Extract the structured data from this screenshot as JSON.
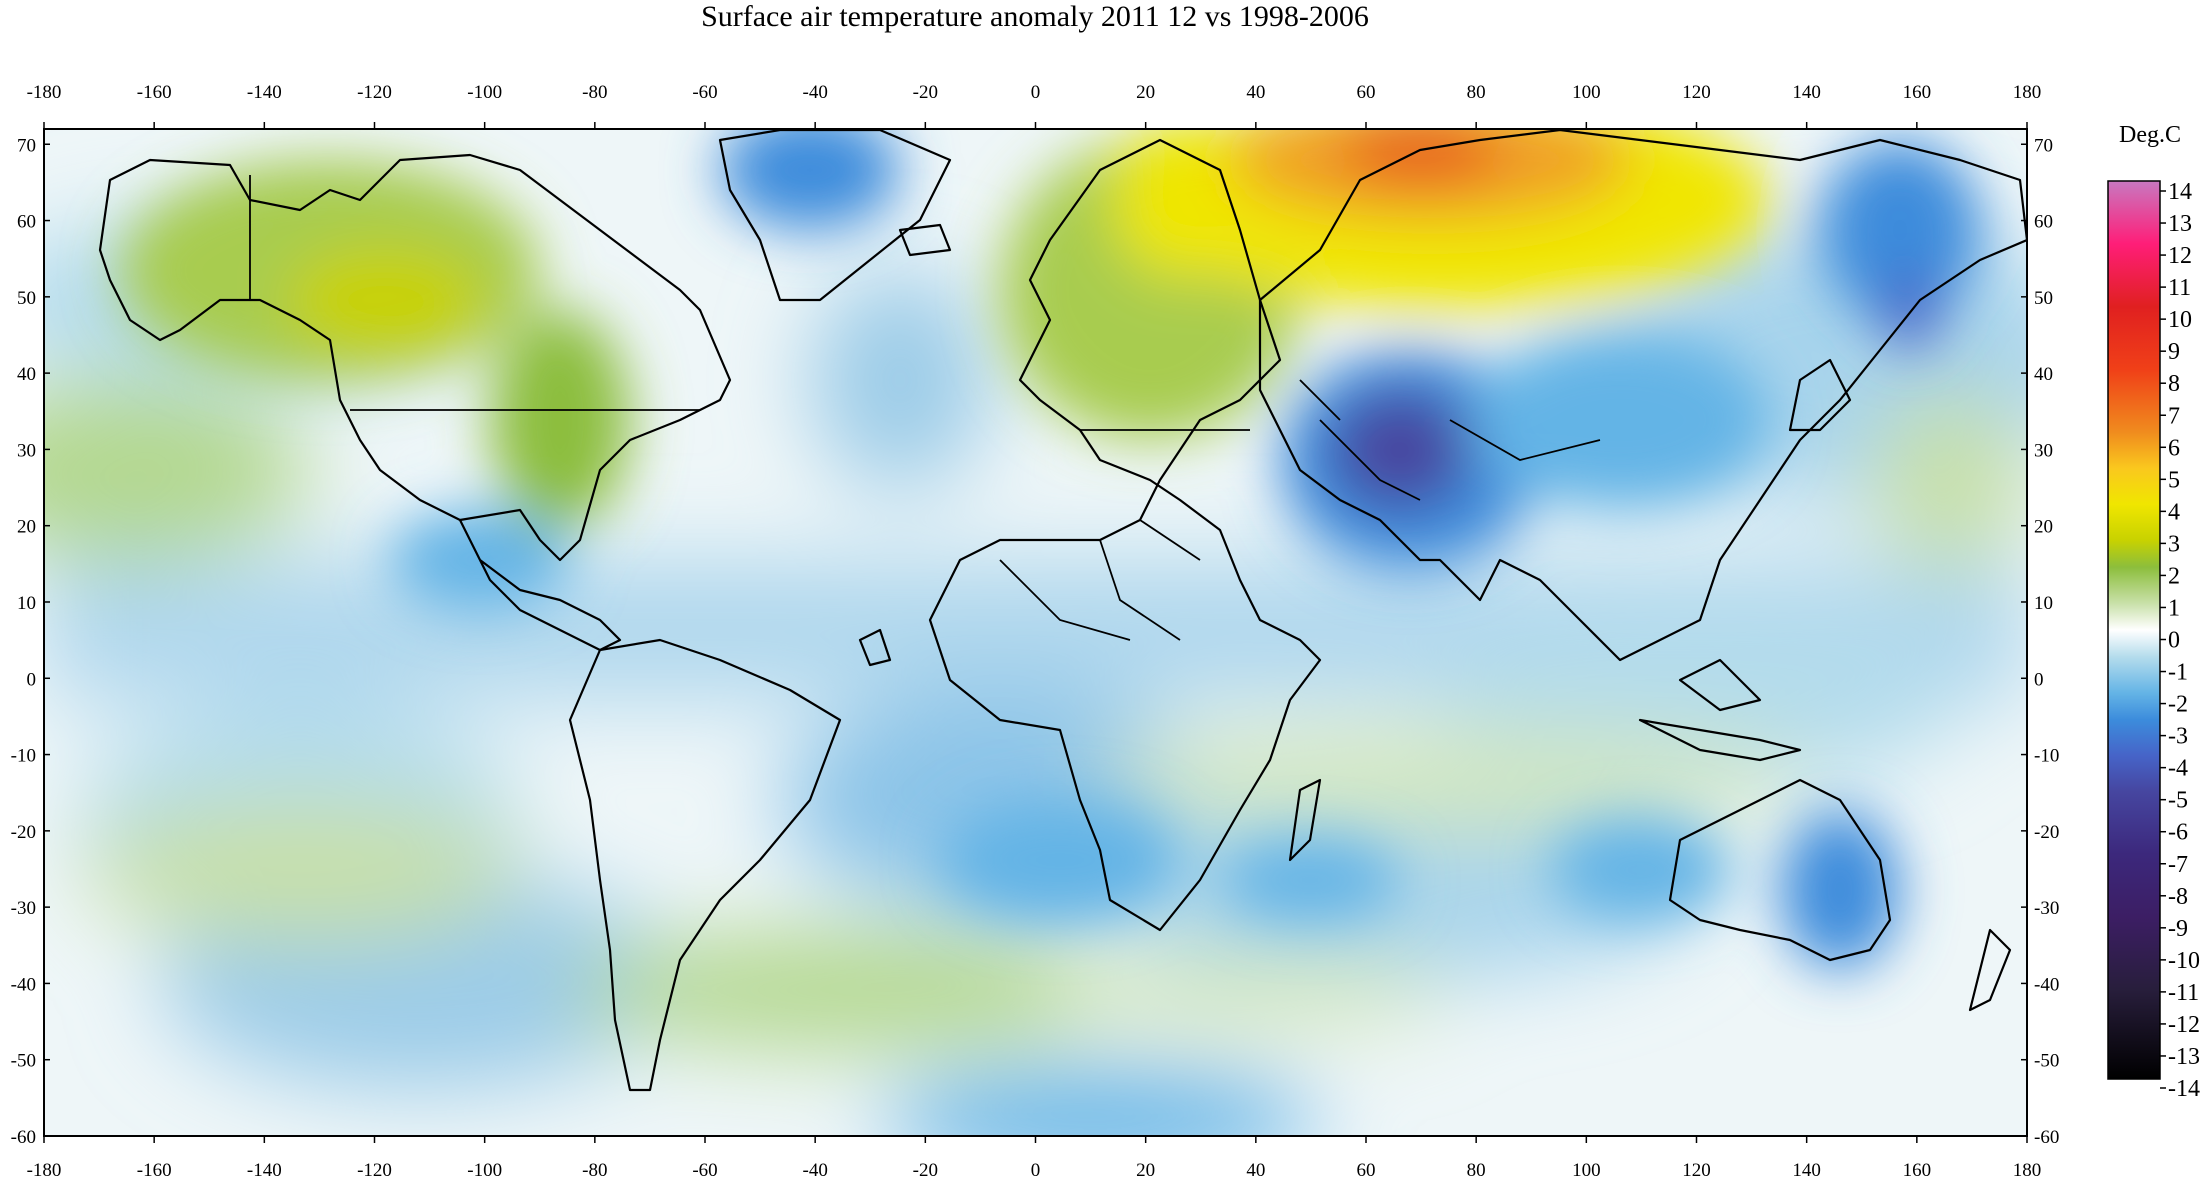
{
  "title": "Surface air temperature anomaly 2011 12 vs 1998-2006",
  "map": {
    "type": "filled-contour-map",
    "projection": "equirectangular",
    "lon_range": [
      -180,
      180
    ],
    "lat_range": [
      -60,
      72
    ],
    "lon_ticks": [
      "-180",
      "-160",
      "-140",
      "-120",
      "-100",
      "-80",
      "-60",
      "-40",
      "-20",
      "0",
      "20",
      "40",
      "60",
      "80",
      "100",
      "120",
      "140",
      "160",
      "180"
    ],
    "lat_ticks": [
      "70",
      "60",
      "50",
      "40",
      "30",
      "20",
      "10",
      "0",
      "-10",
      "-20",
      "-30",
      "-40",
      "-50",
      "-60"
    ],
    "lon_tick_values": [
      -180,
      -160,
      -140,
      -120,
      -100,
      -80,
      -60,
      -40,
      -20,
      0,
      20,
      40,
      60,
      80,
      100,
      120,
      140,
      160,
      180
    ],
    "lat_tick_values": [
      70,
      60,
      50,
      40,
      30,
      20,
      10,
      0,
      -10,
      -20,
      -30,
      -40,
      -50,
      -60
    ],
    "anomaly_features": [
      {
        "lon": 70,
        "lat": 65,
        "value": 7
      },
      {
        "lon": 85,
        "lat": 68,
        "value": 6.5
      },
      {
        "lon": 50,
        "lat": 62,
        "value": 4
      },
      {
        "lon": 20,
        "lat": 60,
        "value": 3
      },
      {
        "lon": -115,
        "lat": 52,
        "value": 3.2
      },
      {
        "lon": -85,
        "lat": 35,
        "value": 2
      },
      {
        "lon": 65,
        "lat": 32,
        "value": -7
      },
      {
        "lon": 95,
        "lat": 42,
        "value": -3
      },
      {
        "lon": 160,
        "lat": 50,
        "value": -5
      },
      {
        "lon": -40,
        "lat": 65,
        "value": -5
      },
      {
        "lon": 140,
        "lat": -25,
        "value": -3
      },
      {
        "lon": -165,
        "lat": 30,
        "value": 2
      },
      {
        "lon": -140,
        "lat": -25,
        "value": 1.5
      },
      {
        "lon": -40,
        "lat": -42,
        "value": 1.5
      }
    ]
  },
  "colorbar": {
    "label": "Deg.C",
    "labels": [
      "14",
      "13",
      "12",
      "11",
      "10",
      "9",
      "8",
      "7",
      "6",
      "5",
      "4",
      "3",
      "2",
      "1",
      "0",
      "-1",
      "-2",
      "-3",
      "-4",
      "-5",
      "-6",
      "-7",
      "-8",
      "-9",
      "-10",
      "-11",
      "-12",
      "-13",
      "-14"
    ],
    "values": [
      14,
      13,
      12,
      11,
      10,
      9,
      8,
      7,
      6,
      5,
      4,
      3,
      2,
      1,
      0,
      -1,
      -2,
      -3,
      -4,
      -5,
      -6,
      -7,
      -8,
      -9,
      -10,
      -11,
      -12,
      -13,
      -14
    ],
    "colors": {
      "14": "#c864b4",
      "12": "#ff1e78",
      "10": "#e02020",
      "8": "#f04018",
      "6": "#f08c1e",
      "5": "#fac81e",
      "4": "#f0e600",
      "3": "#c8d200",
      "2": "#8cbe3c",
      "1": "#c8e0a8",
      "0": "#ffffff",
      "-1": "#b4dcec",
      "-2": "#64b4e6",
      "-3": "#3c8cdc",
      "-4": "#4664c8",
      "-5": "#4646a0",
      "-7": "#3c287c",
      "-9": "#3c1e64",
      "-11": "#281e3c",
      "-14": "#000000"
    }
  }
}
